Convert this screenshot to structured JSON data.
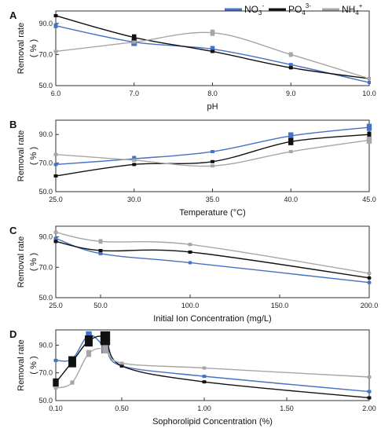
{
  "legend": {
    "placement": "top-right",
    "entries": [
      {
        "base": "NO",
        "sub": "3",
        "sup": "-",
        "color": "#4472c4"
      },
      {
        "base": "PO",
        "sub": "4",
        "sup": "3-",
        "color": "#111111"
      },
      {
        "base": "NH",
        "sub": "4",
        "sup": "+",
        "color": "#a6a6a6"
      }
    ]
  },
  "chart_data": [
    {
      "type": "line",
      "panel": "A",
      "xlabel": "pH",
      "ylabel": "Removal rate",
      "ylabel_unit": "( % )",
      "xlim": [
        6.0,
        10.0
      ],
      "ylim": [
        50,
        98
      ],
      "x_ticks": [
        6.0,
        7.0,
        8.0,
        9.0,
        10.0
      ],
      "x_tick_labels": [
        "6.0",
        "7.0",
        "8.0",
        "9.0",
        "10.0"
      ],
      "y_ticks": [
        50,
        70,
        90
      ],
      "y_tick_labels": [
        "50.0",
        "70.0",
        "90.0"
      ],
      "grid": false,
      "series": [
        {
          "name": "NO3-",
          "x": [
            6,
            7,
            8,
            9,
            10
          ],
          "y": [
            88.5,
            78,
            73.5,
            63.5,
            52
          ],
          "err": [
            1.5,
            2.5,
            2.0,
            1.0,
            0
          ]
        },
        {
          "name": "PO43-",
          "x": [
            6,
            7,
            8,
            9,
            10
          ],
          "y": [
            95,
            81,
            72,
            61.5,
            54.5
          ],
          "err": [
            1.0,
            2.0,
            1.0,
            1.0,
            0
          ]
        },
        {
          "name": "NH4+",
          "x": [
            6,
            7,
            8,
            9,
            10
          ],
          "y": [
            72,
            78,
            84,
            70,
            54.5
          ],
          "err": [
            1.0,
            1.0,
            2.0,
            1.5,
            0
          ]
        }
      ]
    },
    {
      "type": "line",
      "panel": "B",
      "xlabel": "Temperature (°C)",
      "ylabel": "Removal rate",
      "ylabel_unit": "( % )",
      "xlim": [
        25.0,
        45.0
      ],
      "ylim": [
        50,
        100
      ],
      "x_ticks": [
        25,
        30,
        35,
        40,
        45
      ],
      "x_tick_labels": [
        "25.0",
        "30.0",
        "35.0",
        "40.0",
        "45.0"
      ],
      "y_ticks": [
        50,
        70,
        90
      ],
      "y_tick_labels": [
        "50.0",
        "70.0",
        "90.0"
      ],
      "grid": false,
      "series": [
        {
          "name": "NO3-",
          "x": [
            25,
            30,
            35,
            40,
            45
          ],
          "y": [
            69,
            73,
            78,
            89,
            95
          ],
          "err": [
            1.0,
            2.0,
            1.0,
            2.5,
            2.5
          ]
        },
        {
          "name": "PO43-",
          "x": [
            25,
            30,
            35,
            40,
            45
          ],
          "y": [
            61,
            69,
            71,
            85,
            90
          ],
          "err": [
            1.0,
            1.0,
            1.0,
            2.5,
            2.0
          ]
        },
        {
          "name": "NH4+",
          "x": [
            25,
            30,
            35,
            40,
            45
          ],
          "y": [
            76,
            72,
            68,
            78,
            86
          ],
          "err": [
            1.0,
            1.0,
            1.0,
            1.0,
            2.5
          ]
        }
      ]
    },
    {
      "type": "line",
      "panel": "C",
      "xlabel": "Initial Ion Concentration (mg/L)",
      "ylabel": "Removal rate",
      "ylabel_unit": "( % )",
      "xlim": [
        25.0,
        200.0
      ],
      "ylim": [
        50,
        97
      ],
      "x_ticks": [
        25,
        50,
        100,
        150,
        200
      ],
      "x_tick_labels": [
        "25.0",
        "50.0",
        "100.0",
        "150.0",
        "200.0"
      ],
      "y_ticks": [
        50,
        70,
        90
      ],
      "y_tick_labels": [
        "50.0",
        "70.0",
        "90.0"
      ],
      "grid": false,
      "series": [
        {
          "name": "NO3-",
          "x": [
            25,
            50,
            100,
            200
          ],
          "y": [
            89,
            79,
            73,
            60
          ],
          "err": [
            1.0,
            1.0,
            0.5,
            0.5
          ]
        },
        {
          "name": "PO43-",
          "x": [
            25,
            50,
            100,
            200
          ],
          "y": [
            87,
            81,
            80,
            63
          ],
          "err": [
            1.0,
            1.0,
            1.0,
            0.5
          ]
        },
        {
          "name": "NH4+",
          "x": [
            25,
            50,
            100,
            200
          ],
          "y": [
            93,
            87,
            85,
            66
          ],
          "err": [
            1.0,
            1.5,
            1.0,
            0.5
          ]
        }
      ]
    },
    {
      "type": "line",
      "panel": "D",
      "xlabel": "Sophorolipid Concentration (%)",
      "ylabel": "Removal rate",
      "ylabel_unit": "( % )",
      "xlim": [
        0.1,
        2.0
      ],
      "ylim": [
        50,
        101
      ],
      "x_ticks": [
        0.1,
        0.5,
        1.0,
        1.5,
        2.0
      ],
      "x_tick_labels": [
        "0.10",
        "0.50",
        "1.00",
        "1.50",
        "2.00"
      ],
      "y_ticks": [
        50,
        70,
        90
      ],
      "y_tick_labels": [
        "50.0",
        "70.0",
        "90.0"
      ],
      "grid": false,
      "series": [
        {
          "name": "NO3-",
          "x": [
            0.1,
            0.2,
            0.3,
            0.4,
            0.5,
            1.0,
            2.0
          ],
          "y": [
            79,
            80,
            97,
            88,
            75,
            67.5,
            56.5
          ],
          "err": [
            1.0,
            1.5,
            3.0,
            4.0,
            1.0,
            1.0,
            1.0
          ]
        },
        {
          "name": "PO43-",
          "x": [
            0.1,
            0.2,
            0.3,
            0.4,
            0.5,
            1.0,
            2.0
          ],
          "y": [
            63,
            78,
            93,
            95,
            75,
            63.5,
            52
          ],
          "err": [
            3.0,
            4.0,
            4.0,
            5.0,
            1.0,
            1.0,
            1.0
          ]
        },
        {
          "name": "NH4+",
          "x": [
            0.1,
            0.2,
            0.3,
            0.4,
            0.5,
            1.0,
            2.0
          ],
          "y": [
            59,
            63,
            84,
            87,
            77,
            73.5,
            67
          ],
          "err": [
            1.0,
            1.5,
            2.5,
            3.0,
            1.0,
            1.0,
            1.0
          ]
        }
      ]
    }
  ]
}
